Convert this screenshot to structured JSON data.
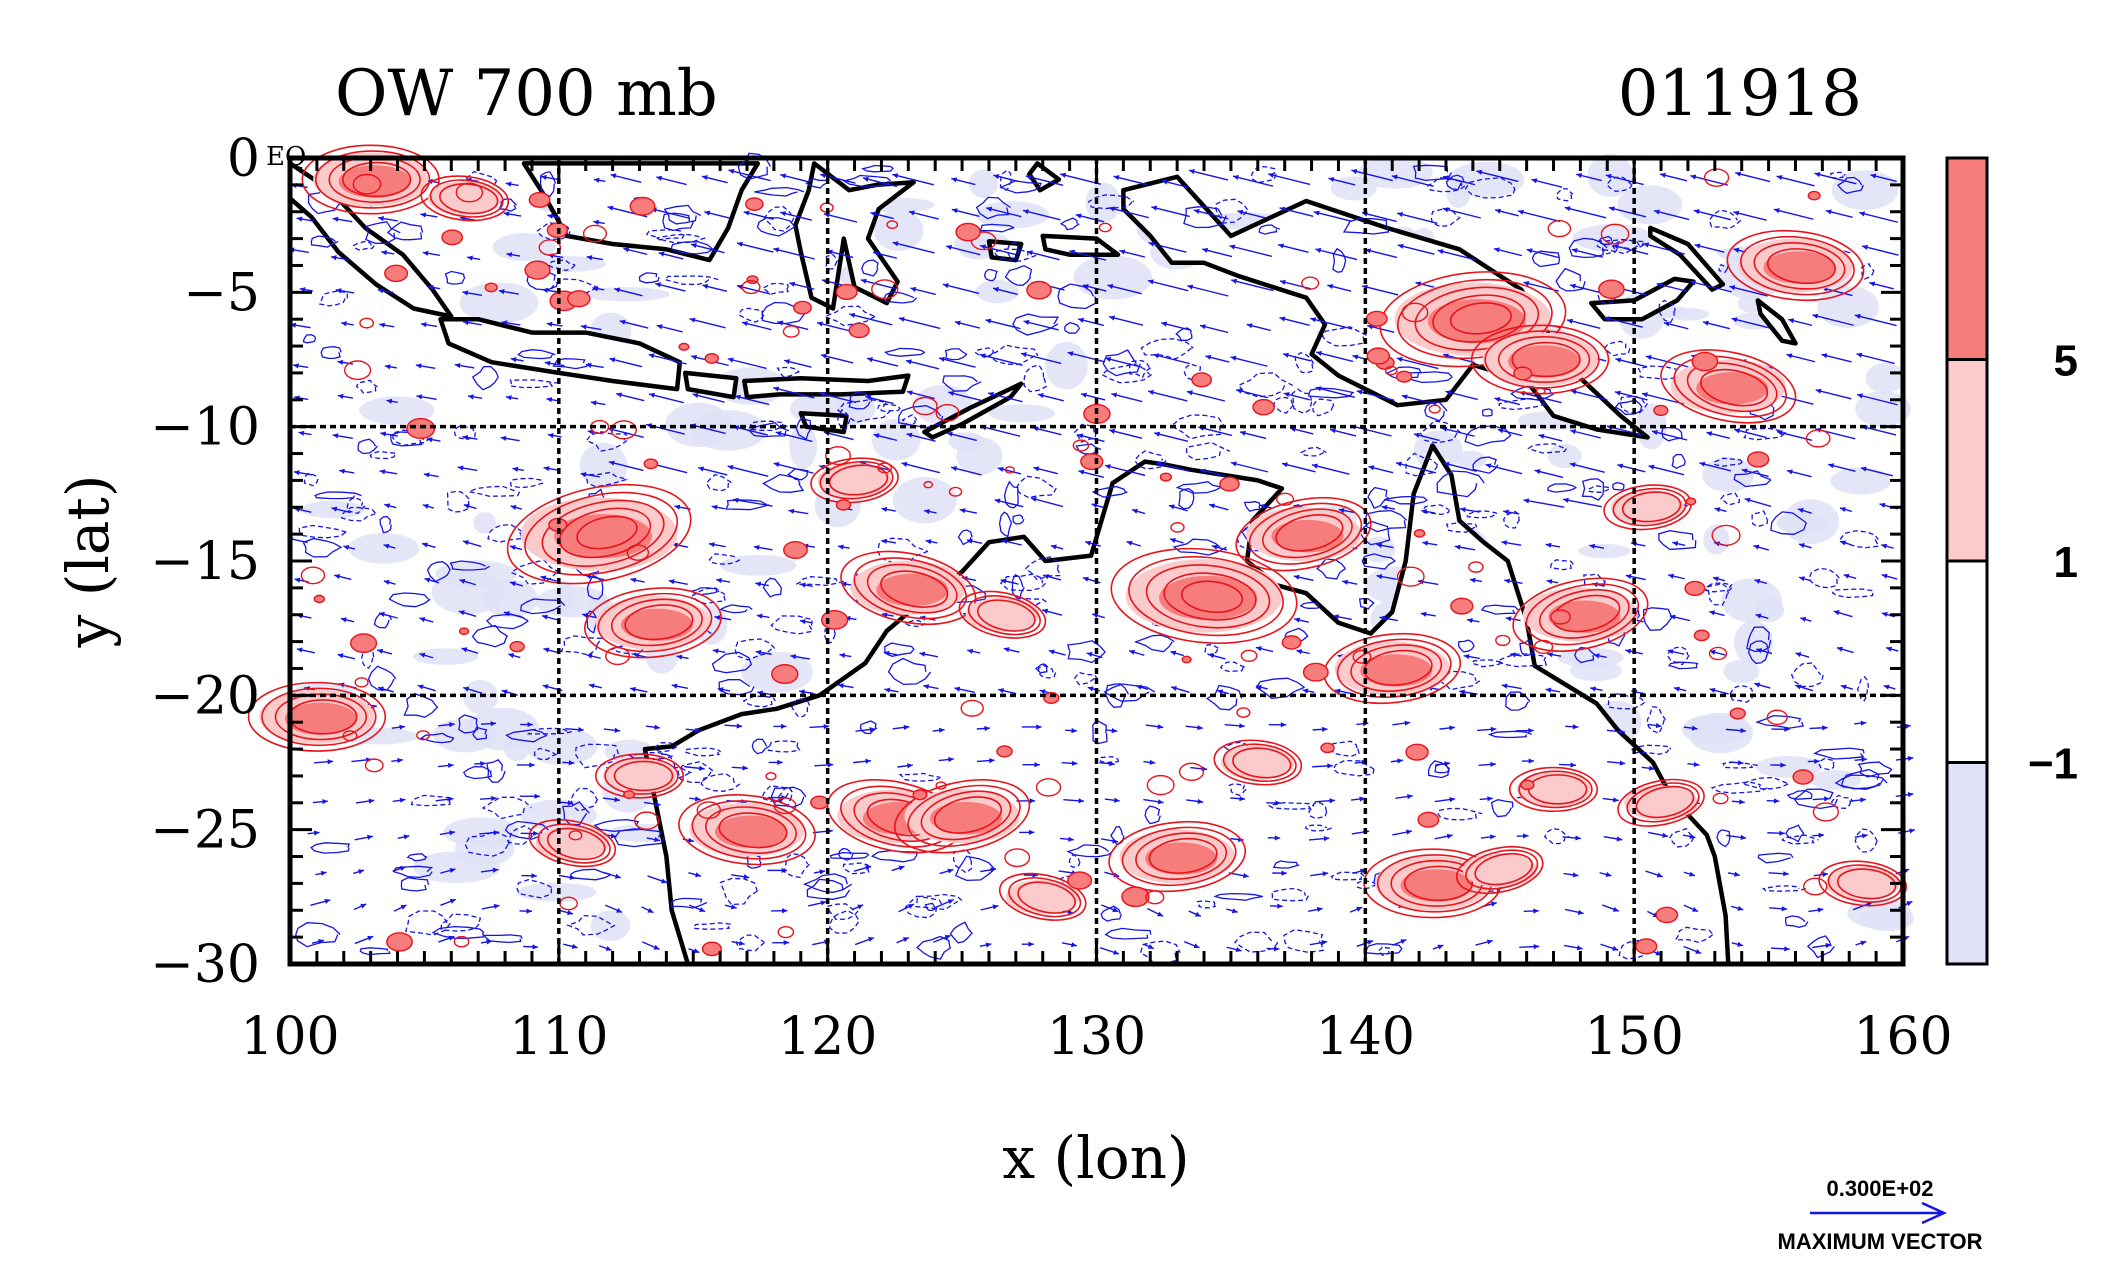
{
  "chart_data": {
    "type": "map",
    "title": "OW 700 mb",
    "subtitle": "011918",
    "xlabel": "x (lon)",
    "ylabel": "y (lat)",
    "xlim": [
      100,
      160
    ],
    "ylim": [
      -30,
      0
    ],
    "x_ticks": [
      100,
      110,
      120,
      130,
      140,
      150,
      160
    ],
    "y_ticks": [
      0,
      -5,
      -10,
      -15,
      -20,
      -25,
      -30
    ],
    "x_tick_labels": [
      "100",
      "110",
      "120",
      "130",
      "140",
      "150",
      "160"
    ],
    "y_tick_labels": [
      "0",
      "−5",
      "−10",
      "−15",
      "−20",
      "−25",
      "−30"
    ],
    "corner_label": "EQ",
    "grid_lines": {
      "lon": [
        110,
        120,
        130,
        140,
        150
      ],
      "lat": [
        -10,
        -20
      ],
      "style": "dashed"
    },
    "colorbar": {
      "levels": [
        -1,
        1,
        5
      ],
      "level_labels": [
        "−1",
        "1",
        "5"
      ],
      "colors": [
        "#dfe2f7",
        "#ffffff",
        "#fbcaca",
        "#f77c7c"
      ]
    },
    "vector_legend": {
      "value_label": "0.300E+02",
      "caption": "MAXIMUM VECTOR",
      "color": "#1515e6"
    },
    "colors": {
      "positive_contour": "#e8141c",
      "negative_contour": "#1515e6",
      "coast": "#000000",
      "vectors": "#1515e6"
    },
    "positive_features": [
      {
        "lon": 111.5,
        "lat": -14.0,
        "strength": 3
      },
      {
        "lon": 113.5,
        "lat": -17.3,
        "strength": 2
      },
      {
        "lon": 101.0,
        "lat": -20.8,
        "strength": 2
      },
      {
        "lon": 134.0,
        "lat": -16.3,
        "strength": 3
      },
      {
        "lon": 123.0,
        "lat": -16.0,
        "strength": 2
      },
      {
        "lon": 137.7,
        "lat": -14.0,
        "strength": 2
      },
      {
        "lon": 144.0,
        "lat": -6.0,
        "strength": 3
      },
      {
        "lon": 146.5,
        "lat": -7.5,
        "strength": 2
      },
      {
        "lon": 156.0,
        "lat": -4.0,
        "strength": 2
      },
      {
        "lon": 153.5,
        "lat": -8.5,
        "strength": 2
      },
      {
        "lon": 148.0,
        "lat": -17.0,
        "strength": 2
      },
      {
        "lon": 150.5,
        "lat": -13.0,
        "strength": 1
      },
      {
        "lon": 103.0,
        "lat": -0.8,
        "strength": 2
      },
      {
        "lon": 106.5,
        "lat": -1.5,
        "strength": 1
      },
      {
        "lon": 122.5,
        "lat": -24.5,
        "strength": 2
      },
      {
        "lon": 125.0,
        "lat": -24.5,
        "strength": 2
      },
      {
        "lon": 133.0,
        "lat": -26.0,
        "strength": 2
      },
      {
        "lon": 142.5,
        "lat": -27.0,
        "strength": 2
      },
      {
        "lon": 117.0,
        "lat": -25.0,
        "strength": 2
      },
      {
        "lon": 110.5,
        "lat": -25.5,
        "strength": 1
      },
      {
        "lon": 151.0,
        "lat": -24.0,
        "strength": 1
      },
      {
        "lon": 141.0,
        "lat": -19.0,
        "strength": 2
      },
      {
        "lon": 147.0,
        "lat": -23.5,
        "strength": 1
      },
      {
        "lon": 136.0,
        "lat": -22.5,
        "strength": 1
      },
      {
        "lon": 128.0,
        "lat": -27.5,
        "strength": 1
      },
      {
        "lon": 145.0,
        "lat": -26.5,
        "strength": 1
      },
      {
        "lon": 121.0,
        "lat": -12.0,
        "strength": 1
      },
      {
        "lon": 113.0,
        "lat": -23.0,
        "strength": 1
      },
      {
        "lon": 158.5,
        "lat": -27.0,
        "strength": 1
      },
      {
        "lon": 126.5,
        "lat": -17.0,
        "strength": 1
      }
    ]
  }
}
